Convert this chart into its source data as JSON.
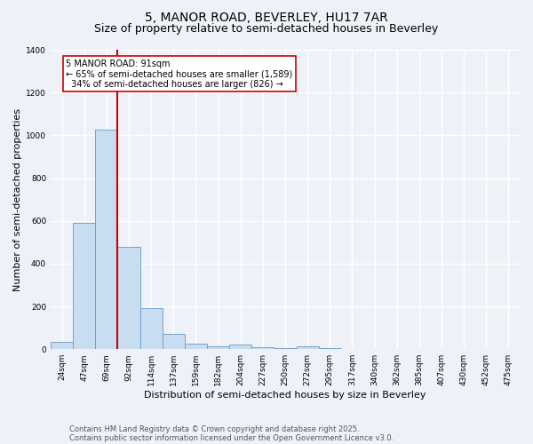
{
  "title": "5, MANOR ROAD, BEVERLEY, HU17 7AR",
  "subtitle": "Size of property relative to semi-detached houses in Beverley",
  "xlabel": "Distribution of semi-detached houses by size in Beverley",
  "ylabel": "Number of semi-detached properties",
  "categories": [
    "24sqm",
    "47sqm",
    "69sqm",
    "92sqm",
    "114sqm",
    "137sqm",
    "159sqm",
    "182sqm",
    "204sqm",
    "227sqm",
    "250sqm",
    "272sqm",
    "295sqm",
    "317sqm",
    "340sqm",
    "362sqm",
    "385sqm",
    "407sqm",
    "430sqm",
    "452sqm",
    "475sqm"
  ],
  "values": [
    35,
    590,
    1025,
    480,
    190,
    70,
    25,
    15,
    20,
    10,
    5,
    15,
    5,
    0,
    0,
    0,
    0,
    0,
    0,
    0,
    0
  ],
  "bar_color": "#c8ddf0",
  "bar_edge_color": "#6699cc",
  "red_line_index": 2.5,
  "annotation_text": "5 MANOR ROAD: 91sqm\n← 65% of semi-detached houses are smaller (1,589)\n  34% of semi-detached houses are larger (826) →",
  "annotation_box_color": "#ffffff",
  "annotation_box_edge_color": "#cc0000",
  "ylim": [
    0,
    1400
  ],
  "yticks": [
    0,
    200,
    400,
    600,
    800,
    1000,
    1200,
    1400
  ],
  "footer_line1": "Contains HM Land Registry data © Crown copyright and database right 2025.",
  "footer_line2": "Contains public sector information licensed under the Open Government Licence v3.0.",
  "bg_color": "#eef2f8",
  "plot_bg_color": "#eef2f8",
  "grid_color": "#ffffff",
  "title_fontsize": 10,
  "subtitle_fontsize": 9,
  "tick_fontsize": 6.5,
  "ylabel_fontsize": 8,
  "xlabel_fontsize": 8,
  "annotation_fontsize": 7,
  "footer_fontsize": 6
}
